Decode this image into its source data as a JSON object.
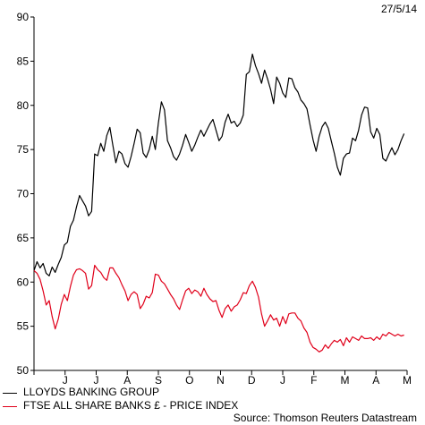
{
  "date_label": "27/5/14",
  "source": "Source: Thomson Reuters Datastream",
  "chart_data": {
    "type": "line",
    "ylim": [
      50,
      90
    ],
    "yticks": [
      50,
      55,
      60,
      65,
      70,
      75,
      80,
      85,
      90
    ],
    "xlim": [
      0,
      12.3
    ],
    "months": [
      "J",
      "J",
      "A",
      "S",
      "O",
      "N",
      "D",
      "J",
      "F",
      "M",
      "A",
      "M"
    ],
    "grid": false,
    "legend_position": "bottom-left",
    "series": [
      {
        "name": "LLOYDS BANKING GROUP",
        "color": "#000000",
        "points": [
          [
            0.0,
            61.3
          ],
          [
            0.1,
            62.3
          ],
          [
            0.2,
            61.6
          ],
          [
            0.3,
            62.1
          ],
          [
            0.4,
            61.0
          ],
          [
            0.5,
            60.7
          ],
          [
            0.6,
            61.7
          ],
          [
            0.7,
            61.1
          ],
          [
            0.8,
            62.0
          ],
          [
            0.9,
            62.8
          ],
          [
            1.0,
            64.2
          ],
          [
            1.1,
            64.5
          ],
          [
            1.2,
            66.3
          ],
          [
            1.3,
            67.0
          ],
          [
            1.4,
            68.5
          ],
          [
            1.5,
            69.8
          ],
          [
            1.6,
            69.2
          ],
          [
            1.7,
            68.6
          ],
          [
            1.8,
            67.5
          ],
          [
            1.9,
            68.0
          ],
          [
            2.0,
            74.5
          ],
          [
            2.1,
            74.3
          ],
          [
            2.2,
            75.7
          ],
          [
            2.3,
            74.8
          ],
          [
            2.4,
            76.6
          ],
          [
            2.5,
            77.5
          ],
          [
            2.6,
            75.5
          ],
          [
            2.7,
            73.5
          ],
          [
            2.8,
            74.8
          ],
          [
            2.9,
            74.5
          ],
          [
            3.0,
            73.4
          ],
          [
            3.1,
            73.0
          ],
          [
            3.2,
            74.2
          ],
          [
            3.3,
            75.7
          ],
          [
            3.4,
            77.3
          ],
          [
            3.5,
            76.9
          ],
          [
            3.6,
            74.6
          ],
          [
            3.7,
            74.1
          ],
          [
            3.8,
            75.0
          ],
          [
            3.9,
            76.5
          ],
          [
            4.0,
            75.0
          ],
          [
            4.1,
            78.0
          ],
          [
            4.2,
            80.4
          ],
          [
            4.3,
            79.5
          ],
          [
            4.4,
            76.0
          ],
          [
            4.5,
            75.2
          ],
          [
            4.6,
            74.2
          ],
          [
            4.7,
            73.8
          ],
          [
            4.8,
            74.5
          ],
          [
            4.9,
            75.5
          ],
          [
            5.0,
            76.7
          ],
          [
            5.1,
            75.8
          ],
          [
            5.2,
            74.8
          ],
          [
            5.3,
            75.5
          ],
          [
            5.4,
            76.4
          ],
          [
            5.5,
            77.2
          ],
          [
            5.6,
            76.5
          ],
          [
            5.7,
            77.2
          ],
          [
            5.8,
            77.9
          ],
          [
            5.9,
            78.4
          ],
          [
            6.0,
            77.2
          ],
          [
            6.1,
            76.0
          ],
          [
            6.2,
            76.5
          ],
          [
            6.3,
            78.1
          ],
          [
            6.4,
            79.0
          ],
          [
            6.5,
            78.0
          ],
          [
            6.6,
            78.2
          ],
          [
            6.7,
            77.6
          ],
          [
            6.8,
            78.0
          ],
          [
            6.9,
            78.9
          ],
          [
            7.0,
            83.5
          ],
          [
            7.1,
            83.8
          ],
          [
            7.2,
            85.8
          ],
          [
            7.3,
            84.5
          ],
          [
            7.4,
            83.6
          ],
          [
            7.5,
            82.5
          ],
          [
            7.6,
            84.0
          ],
          [
            7.7,
            83.0
          ],
          [
            7.8,
            81.8
          ],
          [
            7.9,
            80.2
          ],
          [
            8.0,
            83.2
          ],
          [
            8.1,
            82.5
          ],
          [
            8.2,
            81.4
          ],
          [
            8.3,
            80.9
          ],
          [
            8.4,
            83.1
          ],
          [
            8.5,
            83.0
          ],
          [
            8.6,
            82.0
          ],
          [
            8.7,
            81.5
          ],
          [
            8.8,
            80.6
          ],
          [
            8.9,
            80.2
          ],
          [
            9.0,
            79.6
          ],
          [
            9.1,
            77.8
          ],
          [
            9.2,
            76.1
          ],
          [
            9.3,
            74.8
          ],
          [
            9.4,
            76.5
          ],
          [
            9.5,
            77.6
          ],
          [
            9.6,
            78.1
          ],
          [
            9.7,
            77.4
          ],
          [
            9.8,
            76.0
          ],
          [
            9.9,
            74.6
          ],
          [
            10.0,
            73.0
          ],
          [
            10.1,
            72.1
          ],
          [
            10.2,
            74.0
          ],
          [
            10.3,
            74.5
          ],
          [
            10.4,
            74.6
          ],
          [
            10.5,
            76.3
          ],
          [
            10.6,
            76.0
          ],
          [
            10.7,
            77.2
          ],
          [
            10.8,
            78.9
          ],
          [
            10.9,
            79.8
          ],
          [
            11.0,
            79.7
          ],
          [
            11.1,
            77.0
          ],
          [
            11.2,
            76.3
          ],
          [
            11.3,
            77.4
          ],
          [
            11.4,
            76.7
          ],
          [
            11.5,
            74.0
          ],
          [
            11.6,
            73.7
          ],
          [
            11.7,
            74.5
          ],
          [
            11.8,
            75.2
          ],
          [
            11.9,
            74.4
          ],
          [
            12.0,
            75.0
          ],
          [
            12.1,
            76.0
          ],
          [
            12.2,
            76.8
          ]
        ]
      },
      {
        "name": "FTSE ALL SHARE BANKS £ - PRICE INDEX",
        "color": "#e0001a",
        "points": [
          [
            0.0,
            61.3
          ],
          [
            0.1,
            61.0
          ],
          [
            0.2,
            60.3
          ],
          [
            0.3,
            59.0
          ],
          [
            0.4,
            57.4
          ],
          [
            0.5,
            57.9
          ],
          [
            0.6,
            56.1
          ],
          [
            0.7,
            54.7
          ],
          [
            0.8,
            55.8
          ],
          [
            0.9,
            57.5
          ],
          [
            1.0,
            58.6
          ],
          [
            1.1,
            57.9
          ],
          [
            1.2,
            59.5
          ],
          [
            1.3,
            60.8
          ],
          [
            1.4,
            61.4
          ],
          [
            1.5,
            61.5
          ],
          [
            1.6,
            61.3
          ],
          [
            1.7,
            61.0
          ],
          [
            1.8,
            59.2
          ],
          [
            1.9,
            59.6
          ],
          [
            2.0,
            61.9
          ],
          [
            2.1,
            61.4
          ],
          [
            2.2,
            61.1
          ],
          [
            2.3,
            60.5
          ],
          [
            2.4,
            60.2
          ],
          [
            2.5,
            61.6
          ],
          [
            2.6,
            61.6
          ],
          [
            2.7,
            61.0
          ],
          [
            2.8,
            60.5
          ],
          [
            2.9,
            59.7
          ],
          [
            3.0,
            59.0
          ],
          [
            3.1,
            57.9
          ],
          [
            3.2,
            58.6
          ],
          [
            3.3,
            58.9
          ],
          [
            3.4,
            58.6
          ],
          [
            3.5,
            57.0
          ],
          [
            3.6,
            57.5
          ],
          [
            3.7,
            58.4
          ],
          [
            3.8,
            58.2
          ],
          [
            3.9,
            58.8
          ],
          [
            4.0,
            60.9
          ],
          [
            4.1,
            60.8
          ],
          [
            4.2,
            60.1
          ],
          [
            4.3,
            59.8
          ],
          [
            4.4,
            59.2
          ],
          [
            4.5,
            58.6
          ],
          [
            4.6,
            58.1
          ],
          [
            4.7,
            57.4
          ],
          [
            4.8,
            56.9
          ],
          [
            4.9,
            58.0
          ],
          [
            5.0,
            59.0
          ],
          [
            5.1,
            59.3
          ],
          [
            5.2,
            58.7
          ],
          [
            5.3,
            59.1
          ],
          [
            5.4,
            58.9
          ],
          [
            5.5,
            58.4
          ],
          [
            5.6,
            59.3
          ],
          [
            5.7,
            58.6
          ],
          [
            5.8,
            58.1
          ],
          [
            5.9,
            57.8
          ],
          [
            6.0,
            57.9
          ],
          [
            6.1,
            56.8
          ],
          [
            6.2,
            56.0
          ],
          [
            6.3,
            57.0
          ],
          [
            6.4,
            57.4
          ],
          [
            6.5,
            56.7
          ],
          [
            6.6,
            57.2
          ],
          [
            6.7,
            57.4
          ],
          [
            6.8,
            58.0
          ],
          [
            6.9,
            58.8
          ],
          [
            7.0,
            58.7
          ],
          [
            7.1,
            59.6
          ],
          [
            7.2,
            60.1
          ],
          [
            7.3,
            59.4
          ],
          [
            7.4,
            58.3
          ],
          [
            7.5,
            56.4
          ],
          [
            7.6,
            55.0
          ],
          [
            7.7,
            55.6
          ],
          [
            7.8,
            56.3
          ],
          [
            7.9,
            55.7
          ],
          [
            8.0,
            55.9
          ],
          [
            8.1,
            55.0
          ],
          [
            8.2,
            56.1
          ],
          [
            8.3,
            55.3
          ],
          [
            8.4,
            56.4
          ],
          [
            8.5,
            56.5
          ],
          [
            8.6,
            56.5
          ],
          [
            8.7,
            55.9
          ],
          [
            8.8,
            55.6
          ],
          [
            8.9,
            54.8
          ],
          [
            9.0,
            54.3
          ],
          [
            9.1,
            53.2
          ],
          [
            9.2,
            52.6
          ],
          [
            9.3,
            52.4
          ],
          [
            9.4,
            52.1
          ],
          [
            9.5,
            52.3
          ],
          [
            9.6,
            52.9
          ],
          [
            9.7,
            52.5
          ],
          [
            9.8,
            53.0
          ],
          [
            9.9,
            53.4
          ],
          [
            10.0,
            53.2
          ],
          [
            10.1,
            53.5
          ],
          [
            10.2,
            52.8
          ],
          [
            10.3,
            53.7
          ],
          [
            10.4,
            53.2
          ],
          [
            10.5,
            53.8
          ],
          [
            10.6,
            53.6
          ],
          [
            10.7,
            53.4
          ],
          [
            10.8,
            53.9
          ],
          [
            10.9,
            53.6
          ],
          [
            11.0,
            53.6
          ],
          [
            11.1,
            53.7
          ],
          [
            11.2,
            53.4
          ],
          [
            11.3,
            53.8
          ],
          [
            11.4,
            53.5
          ],
          [
            11.5,
            54.1
          ],
          [
            11.6,
            53.9
          ],
          [
            11.7,
            54.3
          ],
          [
            11.8,
            54.1
          ],
          [
            11.9,
            53.9
          ],
          [
            12.0,
            54.1
          ],
          [
            12.1,
            53.9
          ],
          [
            12.2,
            54.0
          ]
        ]
      }
    ]
  }
}
